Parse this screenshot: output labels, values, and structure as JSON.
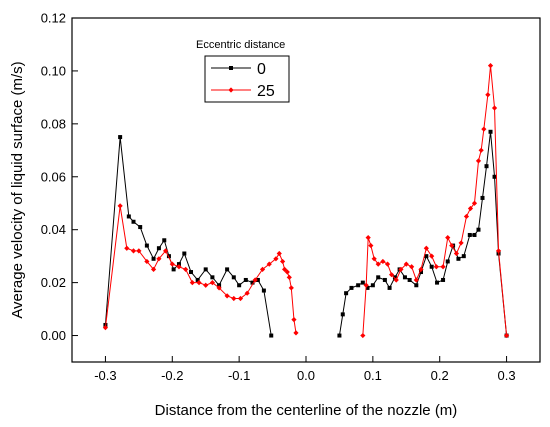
{
  "chart_data": {
    "type": "line",
    "xlabel": "Distance from the centerline of the nozzle (m)",
    "ylabel": "Average velocity of liquid surface (m/s)",
    "xlim": [
      -0.35,
      0.35
    ],
    "ylim": [
      -0.01,
      0.12
    ],
    "xticks": [
      -0.3,
      -0.2,
      -0.1,
      0.0,
      0.1,
      0.2,
      0.3
    ],
    "yticks": [
      0.0,
      0.02,
      0.04,
      0.06,
      0.08,
      0.1,
      0.12
    ],
    "xtick_labels": [
      "-0.3",
      "-0.2",
      "-0.1",
      "0.0",
      "0.1",
      "0.2",
      "0.3"
    ],
    "ytick_labels": [
      "0.00",
      "0.02",
      "0.04",
      "0.06",
      "0.08",
      "0.10",
      "0.12"
    ],
    "legend": {
      "title": "Eccentric distance",
      "position": "top-left"
    },
    "series": [
      {
        "name": "0",
        "color": "#000000",
        "marker": "square",
        "segments": [
          [
            [
              -0.3,
              0.004
            ],
            [
              -0.278,
              0.075
            ],
            [
              -0.265,
              0.045
            ],
            [
              -0.258,
              0.043
            ],
            [
              -0.248,
              0.041
            ],
            [
              -0.238,
              0.034
            ],
            [
              -0.228,
              0.029
            ],
            [
              -0.22,
              0.033
            ],
            [
              -0.212,
              0.036
            ],
            [
              -0.205,
              0.03
            ],
            [
              -0.198,
              0.025
            ],
            [
              -0.19,
              0.027
            ],
            [
              -0.182,
              0.031
            ],
            [
              -0.172,
              0.024
            ],
            [
              -0.162,
              0.021
            ],
            [
              -0.15,
              0.025
            ],
            [
              -0.14,
              0.022
            ],
            [
              -0.13,
              0.019
            ],
            [
              -0.118,
              0.025
            ],
            [
              -0.108,
              0.022
            ],
            [
              -0.1,
              0.019
            ],
            [
              -0.09,
              0.021
            ],
            [
              -0.08,
              0.02
            ],
            [
              -0.072,
              0.021
            ],
            [
              -0.063,
              0.017
            ],
            [
              -0.052,
              0.0
            ]
          ],
          [
            [
              0.05,
              0.0
            ],
            [
              0.055,
              0.008
            ],
            [
              0.06,
              0.016
            ],
            [
              0.068,
              0.018
            ],
            [
              0.078,
              0.019
            ],
            [
              0.085,
              0.02
            ],
            [
              0.092,
              0.018
            ],
            [
              0.1,
              0.019
            ],
            [
              0.108,
              0.022
            ],
            [
              0.118,
              0.021
            ],
            [
              0.125,
              0.018
            ],
            [
              0.133,
              0.022
            ],
            [
              0.14,
              0.025
            ],
            [
              0.148,
              0.022
            ],
            [
              0.155,
              0.021
            ],
            [
              0.165,
              0.019
            ],
            [
              0.172,
              0.024
            ],
            [
              0.18,
              0.03
            ],
            [
              0.188,
              0.026
            ],
            [
              0.196,
              0.02
            ],
            [
              0.205,
              0.021
            ],
            [
              0.212,
              0.028
            ],
            [
              0.22,
              0.034
            ],
            [
              0.228,
              0.029
            ],
            [
              0.236,
              0.03
            ],
            [
              0.245,
              0.038
            ],
            [
              0.252,
              0.038
            ],
            [
              0.258,
              0.04
            ],
            [
              0.264,
              0.052
            ],
            [
              0.27,
              0.064
            ],
            [
              0.276,
              0.077
            ],
            [
              0.282,
              0.06
            ],
            [
              0.288,
              0.031
            ],
            [
              0.3,
              0.0
            ]
          ]
        ]
      },
      {
        "name": "25",
        "color": "#ff0000",
        "marker": "diamond",
        "segments": [
          [
            [
              -0.3,
              0.003
            ],
            [
              -0.278,
              0.049
            ],
            [
              -0.268,
              0.033
            ],
            [
              -0.258,
              0.032
            ],
            [
              -0.25,
              0.032
            ],
            [
              -0.238,
              0.028
            ],
            [
              -0.228,
              0.025
            ],
            [
              -0.22,
              0.029
            ],
            [
              -0.21,
              0.032
            ],
            [
              -0.2,
              0.027
            ],
            [
              -0.19,
              0.026
            ],
            [
              -0.18,
              0.025
            ],
            [
              -0.17,
              0.02
            ],
            [
              -0.16,
              0.02
            ],
            [
              -0.15,
              0.019
            ],
            [
              -0.14,
              0.02
            ],
            [
              -0.13,
              0.018
            ],
            [
              -0.118,
              0.015
            ],
            [
              -0.108,
              0.014
            ],
            [
              -0.098,
              0.014
            ],
            [
              -0.088,
              0.016
            ],
            [
              -0.076,
              0.021
            ],
            [
              -0.065,
              0.025
            ],
            [
              -0.055,
              0.027
            ],
            [
              -0.045,
              0.029
            ],
            [
              -0.04,
              0.031
            ],
            [
              -0.035,
              0.028
            ],
            [
              -0.032,
              0.025
            ],
            [
              -0.028,
              0.024
            ],
            [
              -0.025,
              0.022
            ],
            [
              -0.022,
              0.018
            ],
            [
              -0.018,
              0.006
            ],
            [
              -0.015,
              0.001
            ]
          ],
          [
            [
              0.085,
              0.0
            ],
            [
              0.09,
              0.019
            ],
            [
              0.093,
              0.037
            ],
            [
              0.097,
              0.034
            ],
            [
              0.102,
              0.029
            ],
            [
              0.108,
              0.027
            ],
            [
              0.115,
              0.028
            ],
            [
              0.122,
              0.027
            ],
            [
              0.128,
              0.023
            ],
            [
              0.135,
              0.021
            ],
            [
              0.142,
              0.025
            ],
            [
              0.15,
              0.027
            ],
            [
              0.158,
              0.026
            ],
            [
              0.165,
              0.021
            ],
            [
              0.172,
              0.025
            ],
            [
              0.18,
              0.033
            ],
            [
              0.188,
              0.03
            ],
            [
              0.195,
              0.026
            ],
            [
              0.205,
              0.026
            ],
            [
              0.212,
              0.037
            ],
            [
              0.218,
              0.034
            ],
            [
              0.225,
              0.031
            ],
            [
              0.232,
              0.035
            ],
            [
              0.24,
              0.045
            ],
            [
              0.246,
              0.048
            ],
            [
              0.252,
              0.05
            ],
            [
              0.258,
              0.066
            ],
            [
              0.262,
              0.07
            ],
            [
              0.266,
              0.078
            ],
            [
              0.272,
              0.091
            ],
            [
              0.276,
              0.102
            ],
            [
              0.282,
              0.086
            ],
            [
              0.288,
              0.032
            ],
            [
              0.3,
              0.0
            ]
          ]
        ]
      }
    ]
  }
}
